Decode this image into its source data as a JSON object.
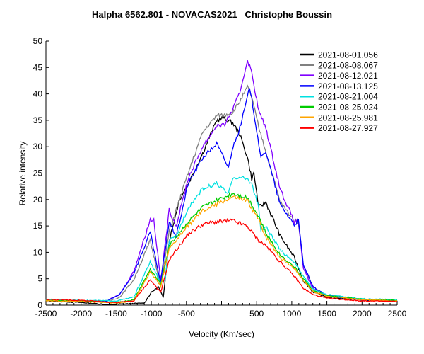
{
  "chart_data": {
    "type": "line",
    "title": "Halpha 6562.801 - NOVACAS2021   Christophe Boussin",
    "xlabel": "Velocity (Km/sec)",
    "ylabel": "Relative intensity",
    "xlim": [
      -2500,
      2500
    ],
    "ylim": [
      0,
      50
    ],
    "xticks": [
      -2500,
      -2000,
      -1500,
      -1000,
      -500,
      0,
      500,
      1000,
      1500,
      2000,
      2500
    ],
    "xtick_labels": [
      "-2500",
      "-2000",
      "-1500",
      "-1000",
      "-500",
      "",
      "500",
      "1000",
      "1500",
      "2000",
      "2500"
    ],
    "yticks": [
      0,
      5,
      10,
      15,
      20,
      25,
      30,
      35,
      40,
      45,
      50
    ],
    "grid": false,
    "legend_position": "top-right",
    "series": [
      {
        "name": "2021-08-01.056",
        "color": "#000000",
        "points": [
          [
            -2500,
            0.8
          ],
          [
            -2000,
            0.5
          ],
          [
            -1600,
            0.1
          ],
          [
            -1100,
            0.4
          ],
          [
            -1000,
            2.4
          ],
          [
            -900,
            3.5
          ],
          [
            -830,
            1.4
          ],
          [
            -745,
            12.2
          ],
          [
            -600,
            20
          ],
          [
            -475,
            23
          ],
          [
            -270,
            28.7
          ],
          [
            -70,
            35
          ],
          [
            20,
            35.4
          ],
          [
            160,
            34.5
          ],
          [
            260,
            32.3
          ],
          [
            370,
            27.9
          ],
          [
            430,
            23.9
          ],
          [
            460,
            25
          ],
          [
            530,
            18.5
          ],
          [
            630,
            19.5
          ],
          [
            835,
            13.1
          ],
          [
            1035,
            9.1
          ],
          [
            1165,
            4.6
          ],
          [
            1300,
            2.5
          ],
          [
            1500,
            1.5
          ],
          [
            2000,
            1
          ],
          [
            2500,
            0.8
          ]
        ]
      },
      {
        "name": "2021-08-08.067",
        "color": "#808080",
        "points": [
          [
            -2500,
            0.9
          ],
          [
            -2000,
            0.8
          ],
          [
            -1650,
            0.6
          ],
          [
            -1450,
            1.5
          ],
          [
            -1250,
            4.8
          ],
          [
            -1015,
            12.2
          ],
          [
            -865,
            3.5
          ],
          [
            -745,
            14
          ],
          [
            -475,
            25
          ],
          [
            -270,
            32.7
          ],
          [
            -70,
            35.9
          ],
          [
            30,
            36
          ],
          [
            160,
            36.5
          ],
          [
            260,
            38.6
          ],
          [
            370,
            41.3
          ],
          [
            430,
            39.4
          ],
          [
            530,
            33.6
          ],
          [
            630,
            29.2
          ],
          [
            835,
            19.5
          ],
          [
            1035,
            16
          ],
          [
            1095,
            15.7
          ],
          [
            1165,
            7.6
          ],
          [
            1300,
            3.5
          ],
          [
            1500,
            1.8
          ],
          [
            2000,
            1.1
          ],
          [
            2500,
            0.9
          ]
        ]
      },
      {
        "name": "2021-08-12.021",
        "color": "#8000ff",
        "points": [
          [
            -2500,
            0.9
          ],
          [
            -2000,
            0.8
          ],
          [
            -1650,
            0.7
          ],
          [
            -1450,
            2
          ],
          [
            -1250,
            6.4
          ],
          [
            -1015,
            16.2
          ],
          [
            -965,
            16.2
          ],
          [
            -865,
            4.6
          ],
          [
            -745,
            18
          ],
          [
            -645,
            15
          ],
          [
            -475,
            24
          ],
          [
            -270,
            30
          ],
          [
            -70,
            34
          ],
          [
            30,
            34
          ],
          [
            160,
            37
          ],
          [
            260,
            40.3
          ],
          [
            370,
            46.4
          ],
          [
            430,
            44
          ],
          [
            530,
            36.7
          ],
          [
            630,
            33.6
          ],
          [
            835,
            22
          ],
          [
            1035,
            15.8
          ],
          [
            1095,
            16
          ],
          [
            1165,
            6.8
          ],
          [
            1300,
            3.2
          ],
          [
            1500,
            1.8
          ],
          [
            2000,
            1
          ],
          [
            2500,
            0.8
          ]
        ]
      },
      {
        "name": "2021-08-13.125",
        "color": "#0000ff",
        "points": [
          [
            -2500,
            0.9
          ],
          [
            -2000,
            0.8
          ],
          [
            -1650,
            0.7
          ],
          [
            -1450,
            2
          ],
          [
            -1250,
            6
          ],
          [
            -1015,
            13.8
          ],
          [
            -870,
            4.2
          ],
          [
            -745,
            15.8
          ],
          [
            -645,
            13
          ],
          [
            -475,
            23
          ],
          [
            -270,
            27.9
          ],
          [
            -70,
            30.6
          ],
          [
            100,
            26
          ],
          [
            150,
            29.5
          ],
          [
            260,
            33.5
          ],
          [
            370,
            39.4
          ],
          [
            400,
            41.3
          ],
          [
            430,
            39
          ],
          [
            530,
            30.6
          ],
          [
            560,
            27.7
          ],
          [
            630,
            29.2
          ],
          [
            835,
            19
          ],
          [
            1035,
            15.3
          ],
          [
            1095,
            16
          ],
          [
            1165,
            7.6
          ],
          [
            1300,
            3.5
          ],
          [
            1500,
            1.8
          ],
          [
            2000,
            1
          ],
          [
            2500,
            0.8
          ]
        ]
      },
      {
        "name": "2021-08-21.004",
        "color": "#00e0e0",
        "points": [
          [
            -2500,
            1
          ],
          [
            -2000,
            0.9
          ],
          [
            -1500,
            0.8
          ],
          [
            -1250,
            1.5
          ],
          [
            -1015,
            8.2
          ],
          [
            -865,
            4.2
          ],
          [
            -800,
            4.9
          ],
          [
            -745,
            12.2
          ],
          [
            -645,
            13
          ],
          [
            -475,
            18.5
          ],
          [
            -270,
            22
          ],
          [
            -70,
            23
          ],
          [
            100,
            21
          ],
          [
            160,
            24.3
          ],
          [
            370,
            23.9
          ],
          [
            430,
            23
          ],
          [
            530,
            18.5
          ],
          [
            560,
            14
          ],
          [
            630,
            14.9
          ],
          [
            835,
            10.4
          ],
          [
            1035,
            8.2
          ],
          [
            1165,
            5.5
          ],
          [
            1300,
            3
          ],
          [
            1500,
            2
          ],
          [
            2000,
            1.2
          ],
          [
            2500,
            1
          ]
        ]
      },
      {
        "name": "2021-08-25.024",
        "color": "#00cc00",
        "points": [
          [
            -2500,
            0.9
          ],
          [
            -2000,
            0.8
          ],
          [
            -1500,
            0.5
          ],
          [
            -1250,
            1
          ],
          [
            -1015,
            6.8
          ],
          [
            -865,
            4
          ],
          [
            -745,
            11.3
          ],
          [
            -475,
            15.8
          ],
          [
            -270,
            18.5
          ],
          [
            -70,
            19.8
          ],
          [
            160,
            21.2
          ],
          [
            370,
            20.4
          ],
          [
            530,
            16.8
          ],
          [
            630,
            13.6
          ],
          [
            835,
            9.5
          ],
          [
            1035,
            7.3
          ],
          [
            1165,
            5
          ],
          [
            1300,
            2.8
          ],
          [
            1500,
            1.8
          ],
          [
            2000,
            1.1
          ],
          [
            2500,
            0.9
          ]
        ]
      },
      {
        "name": "2021-08-25.981",
        "color": "#ffa500",
        "points": [
          [
            -2500,
            0.8
          ],
          [
            -2000,
            0.7
          ],
          [
            -1500,
            0.4
          ],
          [
            -1250,
            0.8
          ],
          [
            -1015,
            6.3
          ],
          [
            -865,
            3.6
          ],
          [
            -745,
            10.6
          ],
          [
            -475,
            15.1
          ],
          [
            -270,
            17.8
          ],
          [
            -70,
            19.1
          ],
          [
            160,
            20.5
          ],
          [
            370,
            19.7
          ],
          [
            530,
            16.1
          ],
          [
            630,
            13
          ],
          [
            835,
            9
          ],
          [
            1035,
            7
          ],
          [
            1165,
            4.7
          ],
          [
            1300,
            2.6
          ],
          [
            1500,
            1.7
          ],
          [
            2000,
            1
          ],
          [
            2500,
            0.8
          ]
        ]
      },
      {
        "name": "2021-08-27.927",
        "color": "#ff0000",
        "points": [
          [
            -2500,
            1.1
          ],
          [
            -2000,
            0.9
          ],
          [
            -1500,
            0.5
          ],
          [
            -1250,
            0.8
          ],
          [
            -1015,
            4.8
          ],
          [
            -865,
            2.4
          ],
          [
            -745,
            8.6
          ],
          [
            -475,
            13.5
          ],
          [
            -270,
            15.3
          ],
          [
            -70,
            15.8
          ],
          [
            160,
            16
          ],
          [
            370,
            14.9
          ],
          [
            530,
            12.2
          ],
          [
            630,
            11.3
          ],
          [
            835,
            8.2
          ],
          [
            1035,
            5.5
          ],
          [
            1165,
            3.2
          ],
          [
            1300,
            2
          ],
          [
            1500,
            1.3
          ],
          [
            2000,
            0.8
          ],
          [
            2500,
            0.7
          ]
        ]
      }
    ]
  }
}
